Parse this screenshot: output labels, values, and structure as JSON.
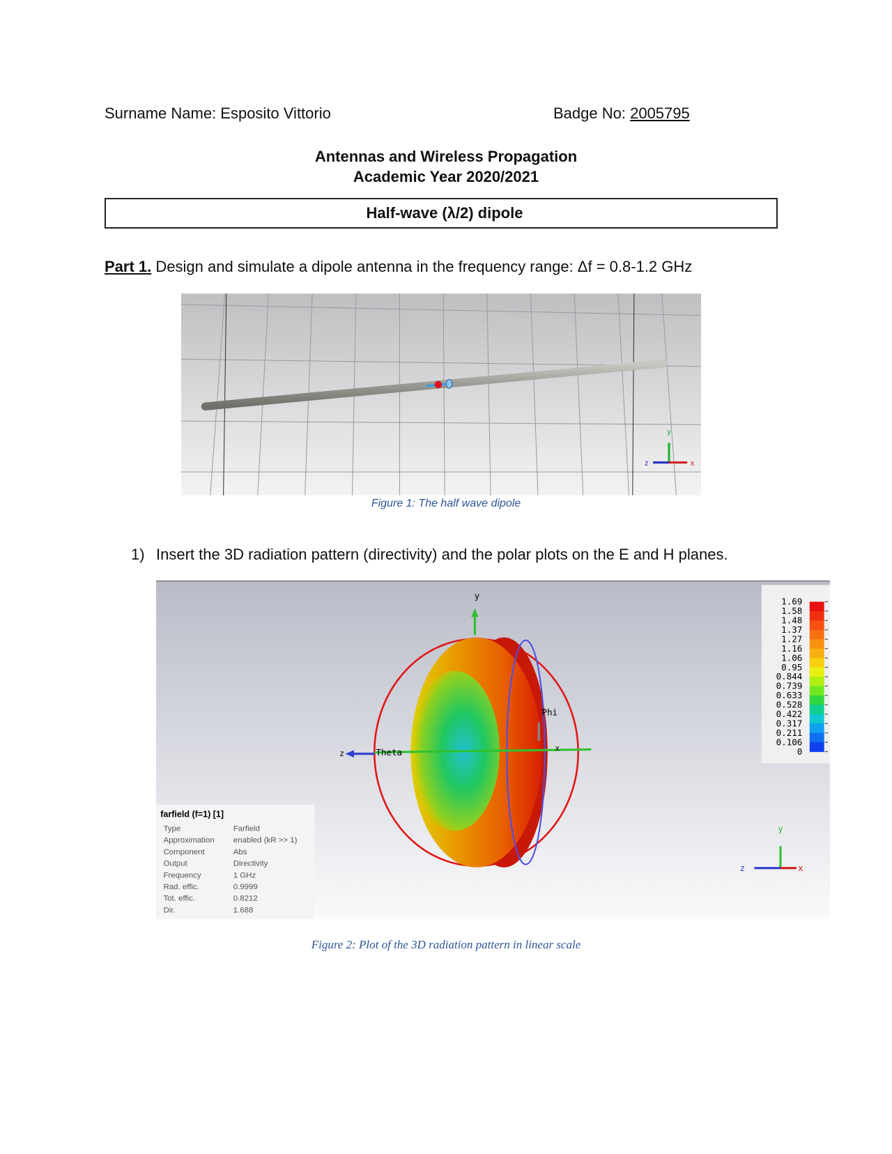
{
  "header": {
    "surname": "Surname Name: Esposito Vittorio",
    "badge_label": "Badge No:",
    "badge_number": "2005795"
  },
  "course": {
    "title": "Antennas and Wireless Propagation",
    "year": "Academic Year 2020/2021"
  },
  "section_title": "Half-wave (λ/2) dipole",
  "part1": {
    "label": "Part 1.",
    "text": "Design and simulate a dipole antenna in the frequency range: Δf = 0.8-1.2 GHz"
  },
  "figure1": {
    "axes": {
      "y": "y",
      "z": "z",
      "x": "x"
    },
    "caption": "Figure 1: The half wave dipole"
  },
  "question1": {
    "number": "1)",
    "text": "Insert the 3D radiation pattern (directivity) and the polar plots on the E and H planes."
  },
  "figure2": {
    "axes": {
      "y": "y",
      "z": "z",
      "x": "x",
      "phi": "Phi",
      "theta": "Theta"
    },
    "colorbar": [
      "1.69",
      "1.58",
      "1.48",
      "1.37",
      "1.27",
      "1.16",
      "1.06",
      "0.95",
      "0.844",
      "0.739",
      "0.633",
      "0.528",
      "0.422",
      "0.317",
      "0.211",
      "0.106",
      "0"
    ],
    "info": {
      "title": "farfield (f=1) [1]",
      "rows": [
        [
          "Type",
          "Farfield"
        ],
        [
          "Approximation",
          "enabled (kR >> 1)"
        ],
        [
          "Component",
          "Abs"
        ],
        [
          "Output",
          "Directivity"
        ],
        [
          "Frequency",
          "1 GHz"
        ],
        [
          "Rad. effic.",
          "0.9999"
        ],
        [
          "Tot. effic.",
          "0.8212"
        ],
        [
          "Dir.",
          "1.688"
        ]
      ]
    },
    "triad": {
      "y": "y",
      "z": "z",
      "x": "x"
    },
    "caption": "Figure 2:  Plot of the 3D radiation pattern  in linear scale"
  }
}
